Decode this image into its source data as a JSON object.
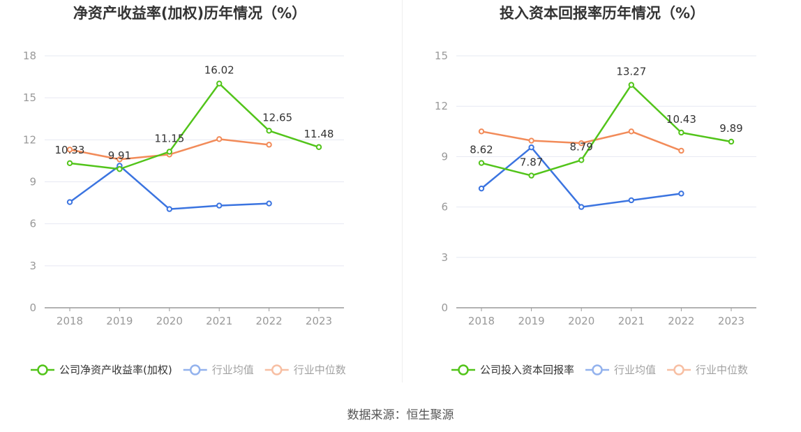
{
  "source_prefix": "数据来源：",
  "source_name": "恒生聚源",
  "colors": {
    "company": "#52c41a",
    "industry_avg": "#3b74e0",
    "industry_median": "#f28b59",
    "grid": "#e6e8f2",
    "axis": "#999999",
    "tick_text": "#999999",
    "title": "#333333",
    "label": "#333333"
  },
  "chart_data": [
    {
      "type": "line",
      "title": "净资产收益率(加权)历年情况（%）",
      "categories": [
        "2018",
        "2019",
        "2020",
        "2021",
        "2022",
        "2023"
      ],
      "ylim": [
        0,
        18
      ],
      "yticks": [
        0,
        3,
        6,
        9,
        12,
        15,
        18
      ],
      "grid": true,
      "legend": "bottom",
      "series": [
        {
          "key": "company",
          "name": "公司净资产收益率(加权)",
          "values": [
            10.33,
            9.91,
            11.15,
            16.02,
            12.65,
            11.48
          ],
          "labels": [
            "10.33",
            "9.91",
            "11.15",
            "16.02",
            "12.65",
            "11.48"
          ]
        },
        {
          "key": "industry_avg",
          "name": "行业均值",
          "values": [
            7.55,
            10.15,
            7.05,
            7.3,
            7.45,
            null
          ]
        },
        {
          "key": "industry_median",
          "name": "行业中位数",
          "values": [
            11.3,
            10.6,
            10.95,
            12.05,
            11.65,
            null
          ]
        }
      ]
    },
    {
      "type": "line",
      "title": "投入资本回报率历年情况（%）",
      "categories": [
        "2018",
        "2019",
        "2020",
        "2021",
        "2022",
        "2023"
      ],
      "ylim": [
        0,
        15
      ],
      "yticks": [
        0,
        3,
        6,
        9,
        12,
        15
      ],
      "grid": true,
      "legend": "bottom",
      "series": [
        {
          "key": "company",
          "name": "公司投入资本回报率",
          "values": [
            8.62,
            7.87,
            8.79,
            13.27,
            10.43,
            9.89
          ],
          "labels": [
            "8.62",
            "7.87",
            "8.79",
            "13.27",
            "10.43",
            "9.89"
          ]
        },
        {
          "key": "industry_avg",
          "name": "行业均值",
          "values": [
            7.1,
            9.55,
            6.0,
            6.4,
            6.8,
            null
          ]
        },
        {
          "key": "industry_median",
          "name": "行业中位数",
          "values": [
            10.5,
            9.95,
            9.8,
            10.5,
            9.35,
            null
          ]
        }
      ]
    }
  ]
}
